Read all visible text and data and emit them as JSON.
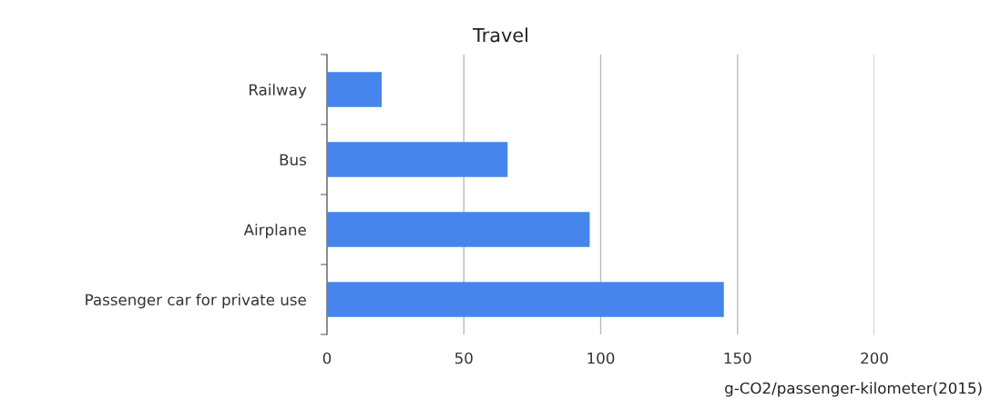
{
  "chart_data": {
    "type": "bar",
    "orientation": "horizontal",
    "title": "Travel",
    "categories": [
      "Railway",
      "Bus",
      "Airplane",
      "Passenger car for private use"
    ],
    "values": [
      20,
      66,
      96,
      145
    ],
    "color": "#4585ec",
    "xlim": [
      0,
      200
    ],
    "xticks": [
      0,
      50,
      100,
      150,
      200
    ],
    "grid": "x",
    "xlabel": "g-CO2/passenger-kilometer(2015)"
  }
}
